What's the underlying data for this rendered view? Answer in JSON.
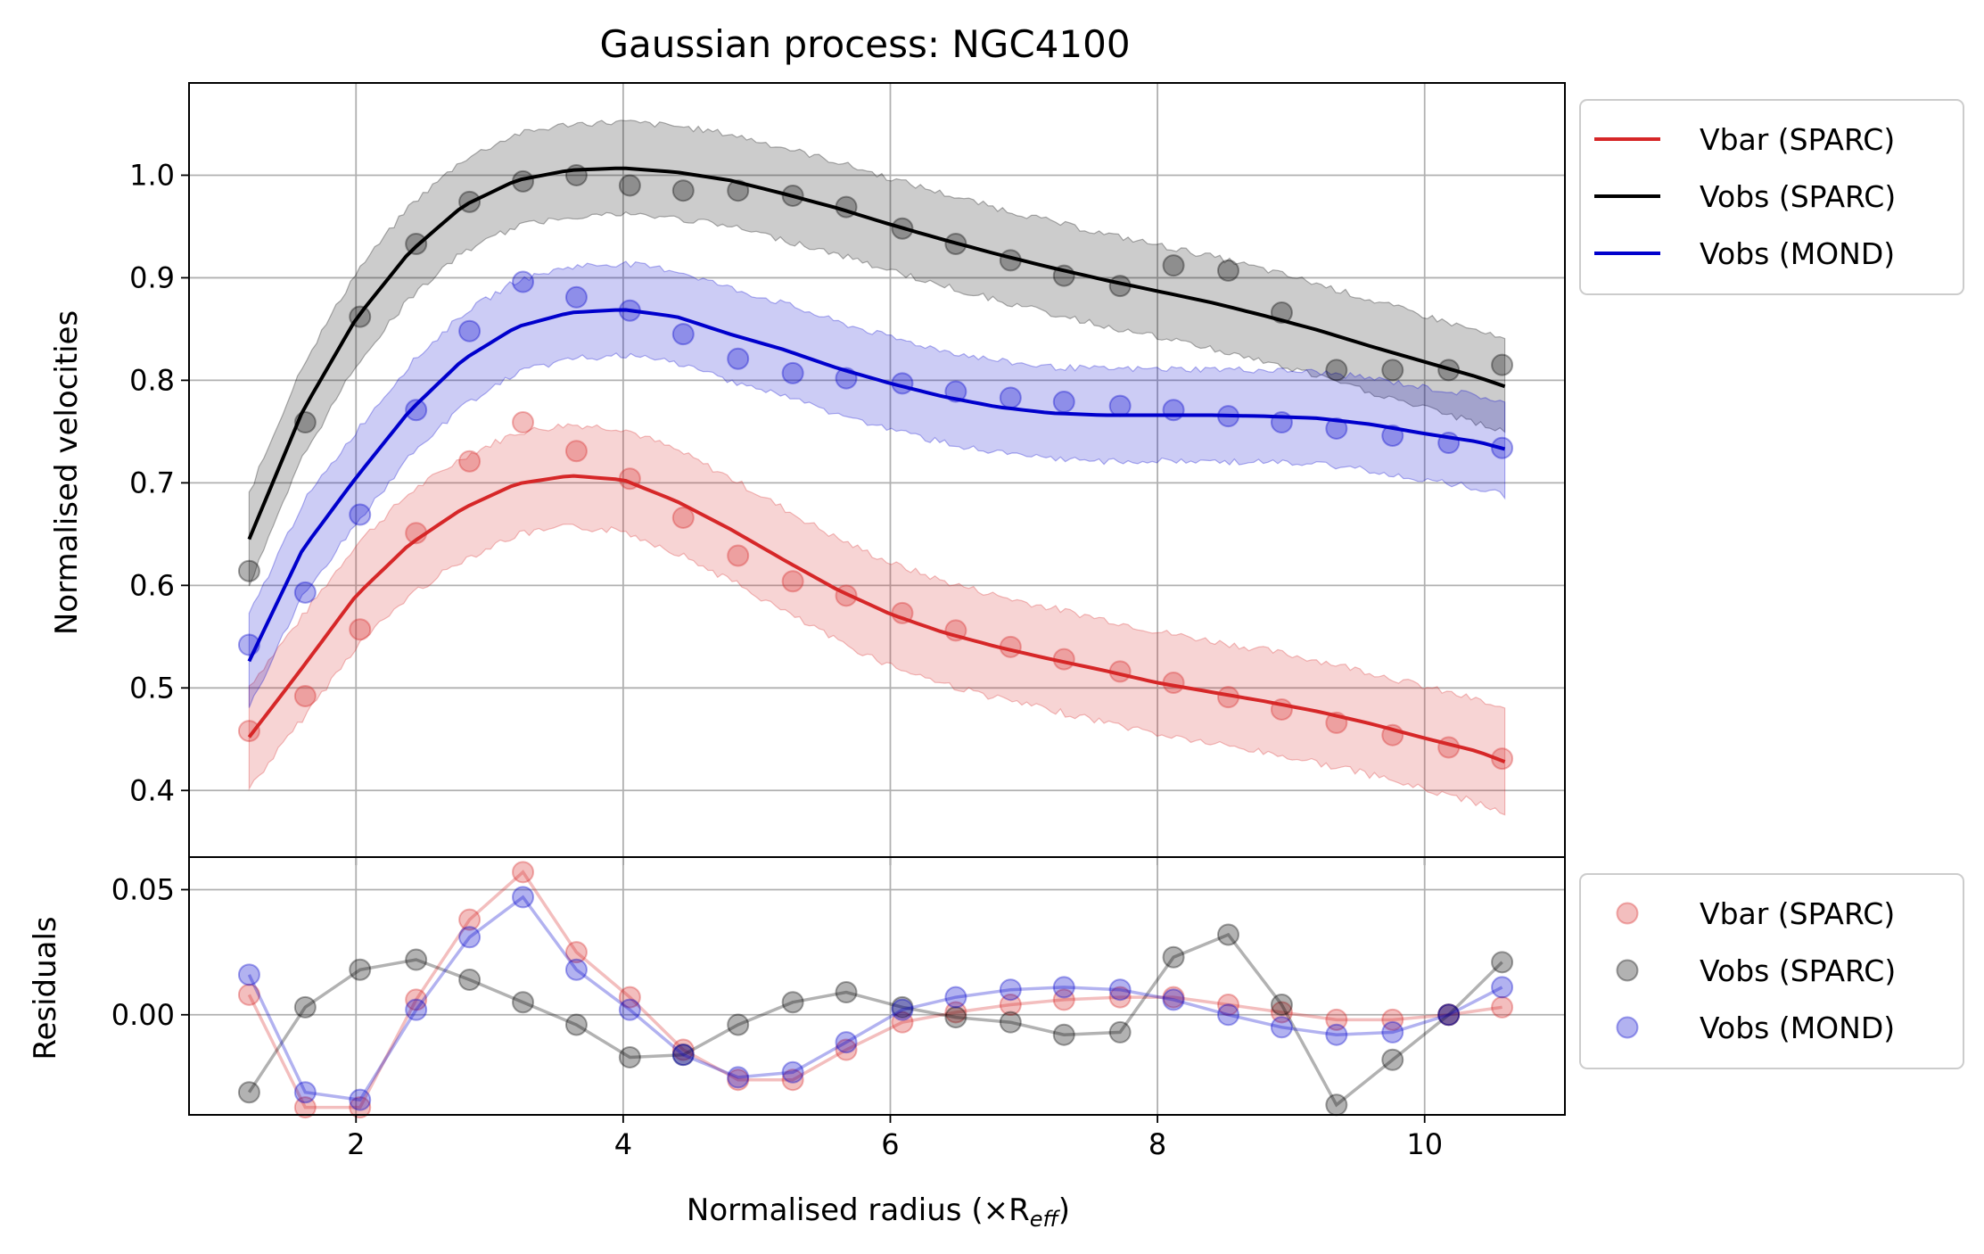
{
  "chart_data": {
    "type": "line",
    "title": "Gaussian process: NGC4100",
    "xlabel": "Normalised radius (×R",
    "xlabel_sub": "eff",
    "xlabel_close": ")",
    "xlim": [
      0.75,
      11.05
    ],
    "xticks": [
      2,
      4,
      6,
      8,
      10
    ],
    "x": [
      1.2,
      1.62,
      2.03,
      2.45,
      2.85,
      3.25,
      3.65,
      4.05,
      4.45,
      4.86,
      5.27,
      5.67,
      6.09,
      6.49,
      6.9,
      7.3,
      7.72,
      8.12,
      8.53,
      8.93,
      9.34,
      9.76,
      10.18,
      10.58
    ],
    "panels": [
      {
        "ylabel": "Normalised velocities",
        "ylim": [
          0.335,
          1.09
        ],
        "yticks": [
          0.4,
          0.5,
          0.6,
          0.7,
          0.8,
          0.9,
          1.0
        ],
        "ytick_labels": [
          "0.4",
          "0.5",
          "0.6",
          "0.7",
          "0.8",
          "0.9",
          "1.0"
        ],
        "series": [
          {
            "name": "Vbar (SPARC)",
            "color": "#d62728",
            "points": [
              0.458,
              0.492,
              0.557,
              0.651,
              0.721,
              0.759,
              0.731,
              0.704,
              0.666,
              0.629,
              0.604,
              0.59,
              0.573,
              0.556,
              0.54,
              0.528,
              0.516,
              0.505,
              0.491,
              0.479,
              0.466,
              0.454,
              0.442,
              0.431
            ],
            "curve": [
              [
                1.2,
                0.452
              ],
              [
                1.6,
                0.52
              ],
              [
                2.0,
                0.59
              ],
              [
                2.4,
                0.64
              ],
              [
                2.8,
                0.675
              ],
              [
                3.2,
                0.699
              ],
              [
                3.6,
                0.707
              ],
              [
                4.0,
                0.703
              ],
              [
                4.4,
                0.682
              ],
              [
                4.8,
                0.655
              ],
              [
                5.2,
                0.625
              ],
              [
                5.6,
                0.596
              ],
              [
                6.0,
                0.572
              ],
              [
                6.4,
                0.554
              ],
              [
                6.8,
                0.54
              ],
              [
                7.2,
                0.528
              ],
              [
                7.6,
                0.517
              ],
              [
                8.0,
                0.505
              ],
              [
                8.4,
                0.496
              ],
              [
                8.8,
                0.487
              ],
              [
                9.2,
                0.477
              ],
              [
                9.6,
                0.465
              ],
              [
                10.0,
                0.451
              ],
              [
                10.4,
                0.438
              ],
              [
                10.6,
                0.428
              ]
            ],
            "band_half_width": 0.05
          },
          {
            "name": "Vobs (SPARC)",
            "color": "#000000",
            "points": [
              0.614,
              0.759,
              0.862,
              0.933,
              0.974,
              0.994,
              1.0,
              0.99,
              0.985,
              0.985,
              0.98,
              0.969,
              0.948,
              0.933,
              0.917,
              0.902,
              0.892,
              0.912,
              0.907,
              0.866,
              0.81,
              0.81,
              0.81,
              0.815
            ],
            "curve": [
              [
                1.2,
                0.645
              ],
              [
                1.6,
                0.77
              ],
              [
                2.0,
                0.86
              ],
              [
                2.4,
                0.925
              ],
              [
                2.8,
                0.97
              ],
              [
                3.2,
                0.995
              ],
              [
                3.6,
                1.005
              ],
              [
                4.0,
                1.007
              ],
              [
                4.4,
                1.003
              ],
              [
                4.8,
                0.995
              ],
              [
                5.2,
                0.982
              ],
              [
                5.6,
                0.968
              ],
              [
                6.0,
                0.952
              ],
              [
                6.4,
                0.937
              ],
              [
                6.8,
                0.923
              ],
              [
                7.2,
                0.91
              ],
              [
                7.6,
                0.898
              ],
              [
                8.0,
                0.887
              ],
              [
                8.4,
                0.876
              ],
              [
                8.8,
                0.863
              ],
              [
                9.2,
                0.849
              ],
              [
                9.6,
                0.833
              ],
              [
                10.0,
                0.818
              ],
              [
                10.4,
                0.803
              ],
              [
                10.6,
                0.794
              ]
            ],
            "band_half_width": 0.045
          },
          {
            "name": "Vobs (MOND)",
            "color": "#0000cc",
            "points": [
              0.542,
              0.593,
              0.669,
              0.771,
              0.848,
              0.896,
              0.881,
              0.868,
              0.845,
              0.821,
              0.807,
              0.802,
              0.797,
              0.789,
              0.783,
              0.779,
              0.775,
              0.771,
              0.765,
              0.759,
              0.753,
              0.746,
              0.739,
              0.734
            ],
            "curve": [
              [
                1.2,
                0.526
              ],
              [
                1.6,
                0.635
              ],
              [
                2.0,
                0.705
              ],
              [
                2.4,
                0.77
              ],
              [
                2.8,
                0.82
              ],
              [
                3.2,
                0.852
              ],
              [
                3.6,
                0.866
              ],
              [
                4.0,
                0.869
              ],
              [
                4.4,
                0.862
              ],
              [
                4.8,
                0.845
              ],
              [
                5.2,
                0.83
              ],
              [
                5.6,
                0.812
              ],
              [
                6.0,
                0.797
              ],
              [
                6.4,
                0.784
              ],
              [
                6.8,
                0.774
              ],
              [
                7.2,
                0.768
              ],
              [
                7.6,
                0.766
              ],
              [
                8.0,
                0.766
              ],
              [
                8.4,
                0.766
              ],
              [
                8.8,
                0.765
              ],
              [
                9.2,
                0.763
              ],
              [
                9.6,
                0.757
              ],
              [
                10.0,
                0.748
              ],
              [
                10.4,
                0.74
              ],
              [
                10.6,
                0.733
              ]
            ],
            "band_half_width": 0.045
          }
        ]
      },
      {
        "ylabel": "Residuals",
        "ylim": [
          -0.04,
          0.063
        ],
        "yticks": [
          0.0,
          0.05
        ],
        "ytick_labels": [
          "0.00",
          "0.05"
        ],
        "series": [
          {
            "name": "Vbar (SPARC)",
            "color": "#d62728",
            "values": [
              0.008,
              -0.037,
              -0.037,
              0.006,
              0.038,
              0.057,
              0.025,
              0.007,
              -0.014,
              -0.026,
              -0.026,
              -0.014,
              -0.003,
              0.001,
              0.004,
              0.006,
              0.007,
              0.007,
              0.004,
              0.001,
              -0.002,
              -0.002,
              0.0,
              0.003
            ]
          },
          {
            "name": "Vobs (SPARC)",
            "color": "#000000",
            "values": [
              -0.031,
              0.003,
              0.018,
              0.022,
              0.014,
              0.005,
              -0.004,
              -0.017,
              -0.016,
              -0.004,
              0.005,
              0.009,
              0.003,
              -0.001,
              -0.003,
              -0.008,
              -0.007,
              0.023,
              0.032,
              0.004,
              -0.036,
              -0.018,
              0.0,
              0.021
            ]
          },
          {
            "name": "Vobs (MOND)",
            "color": "#0000cc",
            "values": [
              0.016,
              -0.031,
              -0.034,
              0.002,
              0.031,
              0.047,
              0.018,
              0.002,
              -0.016,
              -0.025,
              -0.023,
              -0.011,
              0.002,
              0.007,
              0.01,
              0.011,
              0.01,
              0.006,
              0.0,
              -0.005,
              -0.008,
              -0.007,
              0.0,
              0.011
            ]
          }
        ]
      }
    ],
    "legend_top": [
      "Vbar (SPARC)",
      "Vobs (SPARC)",
      "Vobs (MOND)"
    ],
    "legend_bottom": [
      "Vbar (SPARC)",
      "Vobs (SPARC)",
      "Vobs (MOND)"
    ],
    "legend_placement": "outside-right",
    "grid": true
  }
}
